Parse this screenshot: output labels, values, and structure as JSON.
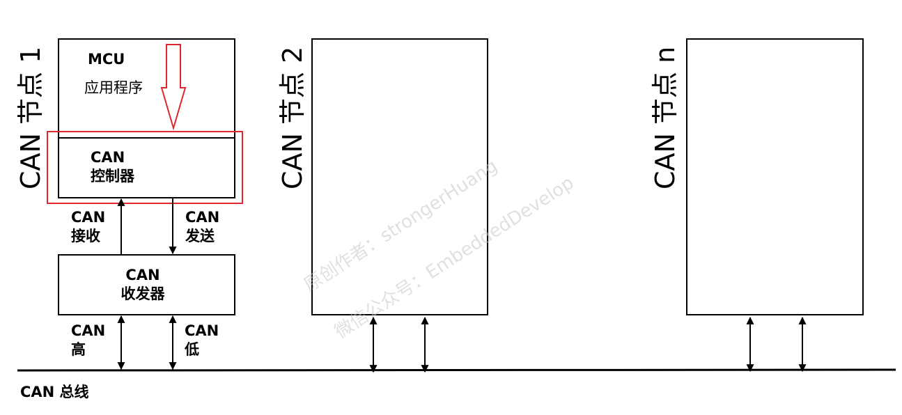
{
  "nodes": {
    "node1": {
      "title": "CAN 节点 1",
      "mcu": "MCU",
      "app": "应用程序",
      "controller": {
        "line1": "CAN",
        "line2": "控制器"
      },
      "rx": {
        "line1": "CAN",
        "line2": "接收"
      },
      "tx": {
        "line1": "CAN",
        "line2": "发送"
      },
      "transceiver": {
        "line1": "CAN",
        "line2": "收发器"
      },
      "high": {
        "line1": "CAN",
        "line2": "高"
      },
      "low": {
        "line1": "CAN",
        "line2": "低"
      }
    },
    "node2": {
      "title": "CAN 节点 2"
    },
    "noden": {
      "title": "CAN 节点 n"
    }
  },
  "bus": {
    "label": "CAN 总线"
  },
  "watermark": {
    "line1": "原创作者：strongerHuang",
    "line2": "微信公众号：EmbeddedDevelop"
  },
  "colors": {
    "highlight": "#e0262d",
    "line": "#000000",
    "watermark": "#c8c8c8"
  }
}
